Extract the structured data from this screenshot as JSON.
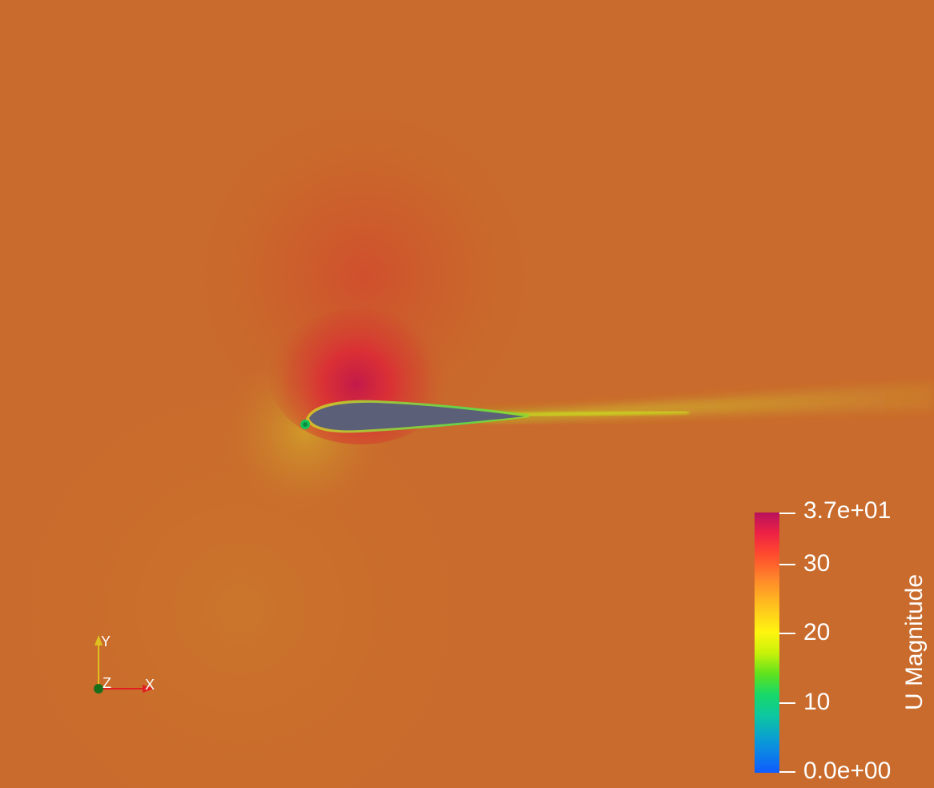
{
  "viewport": {
    "background_color": "#c96b2c",
    "surface_color": "#5b5f78"
  },
  "colorbar": {
    "title": "U Magnitude",
    "range": [
      0,
      37
    ],
    "ticks": [
      {
        "value": 37,
        "label": "3.7e+01"
      },
      {
        "value": 30,
        "label": "30"
      },
      {
        "value": 20,
        "label": "20"
      },
      {
        "value": 10,
        "label": "10"
      },
      {
        "value": 0,
        "label": "0.0e+00"
      }
    ],
    "colormap_stops": [
      "#0f5cff",
      "#0dc7a0",
      "#5fe21d",
      "#fff510",
      "#ff8a2a",
      "#ff4a2e",
      "#b8115e"
    ]
  },
  "orientation_axes": {
    "x_label": "X",
    "y_label": "Y",
    "z_label": "Z",
    "x_color": "#e02020",
    "y_color": "#e0c020",
    "z_color": "#1a6e1a"
  }
}
